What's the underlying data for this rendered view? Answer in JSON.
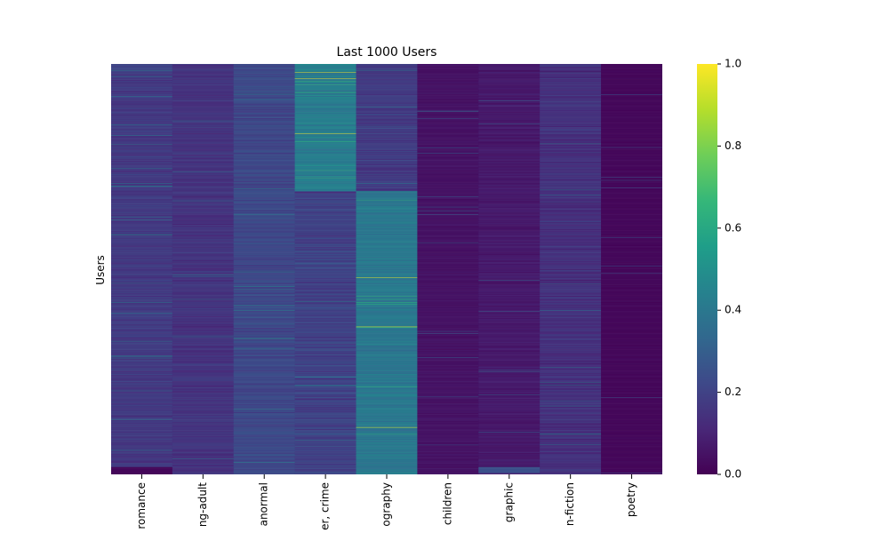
{
  "chart_data": {
    "type": "heatmap",
    "title": "Last 1000 Users",
    "ylabel": "Users",
    "xlabel": "",
    "categories": [
      "romance",
      "young-adult",
      "fantasy, paranormal",
      "mystery, thriller, crime",
      "history, historical fiction, biography",
      "children",
      "comics, graphic",
      "non-fiction",
      "poetry"
    ],
    "category_tick_labels": [
      "romance",
      "ng-adult",
      "anormal",
      "er, crime",
      "ography",
      "children",
      "graphic",
      "n-fiction",
      "poetry"
    ],
    "rows": 1000,
    "colorbar": {
      "min": 0.0,
      "max": 1.0,
      "ticks": [
        "0.0",
        "0.2",
        "0.4",
        "0.6",
        "0.8",
        "1.0"
      ],
      "colormap": "viridis"
    },
    "column_profiles": [
      {
        "name": "romance",
        "base_mean": 0.17,
        "spread": 0.05,
        "start_mean": 0.2,
        "bottom_value": 0.02
      },
      {
        "name": "young-adult",
        "base_mean": 0.15,
        "spread": 0.05
      },
      {
        "name": "fantasy, paranormal",
        "base_mean": 0.22,
        "spread": 0.06
      },
      {
        "name": "mystery, thriller, crime",
        "top_rows_mean": 0.42,
        "top_rows_end": 310,
        "base_mean": 0.2,
        "spread": 0.07,
        "bright_rows": [
          20,
          35,
          170
        ]
      },
      {
        "name": "history, historical fiction, biography",
        "top_rows_mean": 0.18,
        "top_rows_end": 310,
        "base_mean": 0.4,
        "spread": 0.06,
        "bright_rows": [
          520,
          640,
          885
        ]
      },
      {
        "name": "children",
        "base_mean": 0.05,
        "spread": 0.02
      },
      {
        "name": "comics, graphic",
        "base_mean": 0.07,
        "spread": 0.03,
        "bottom_band_mean": 0.25
      },
      {
        "name": "non-fiction",
        "base_mean": 0.14,
        "spread": 0.06
      },
      {
        "name": "poetry",
        "base_mean": 0.02,
        "spread": 0.01
      }
    ]
  },
  "colors": {
    "viridis_stops": [
      "#440154",
      "#482878",
      "#3e4989",
      "#31688e",
      "#26828e",
      "#1f9e89",
      "#35b779",
      "#6ece58",
      "#b5de2b",
      "#fde725"
    ]
  }
}
